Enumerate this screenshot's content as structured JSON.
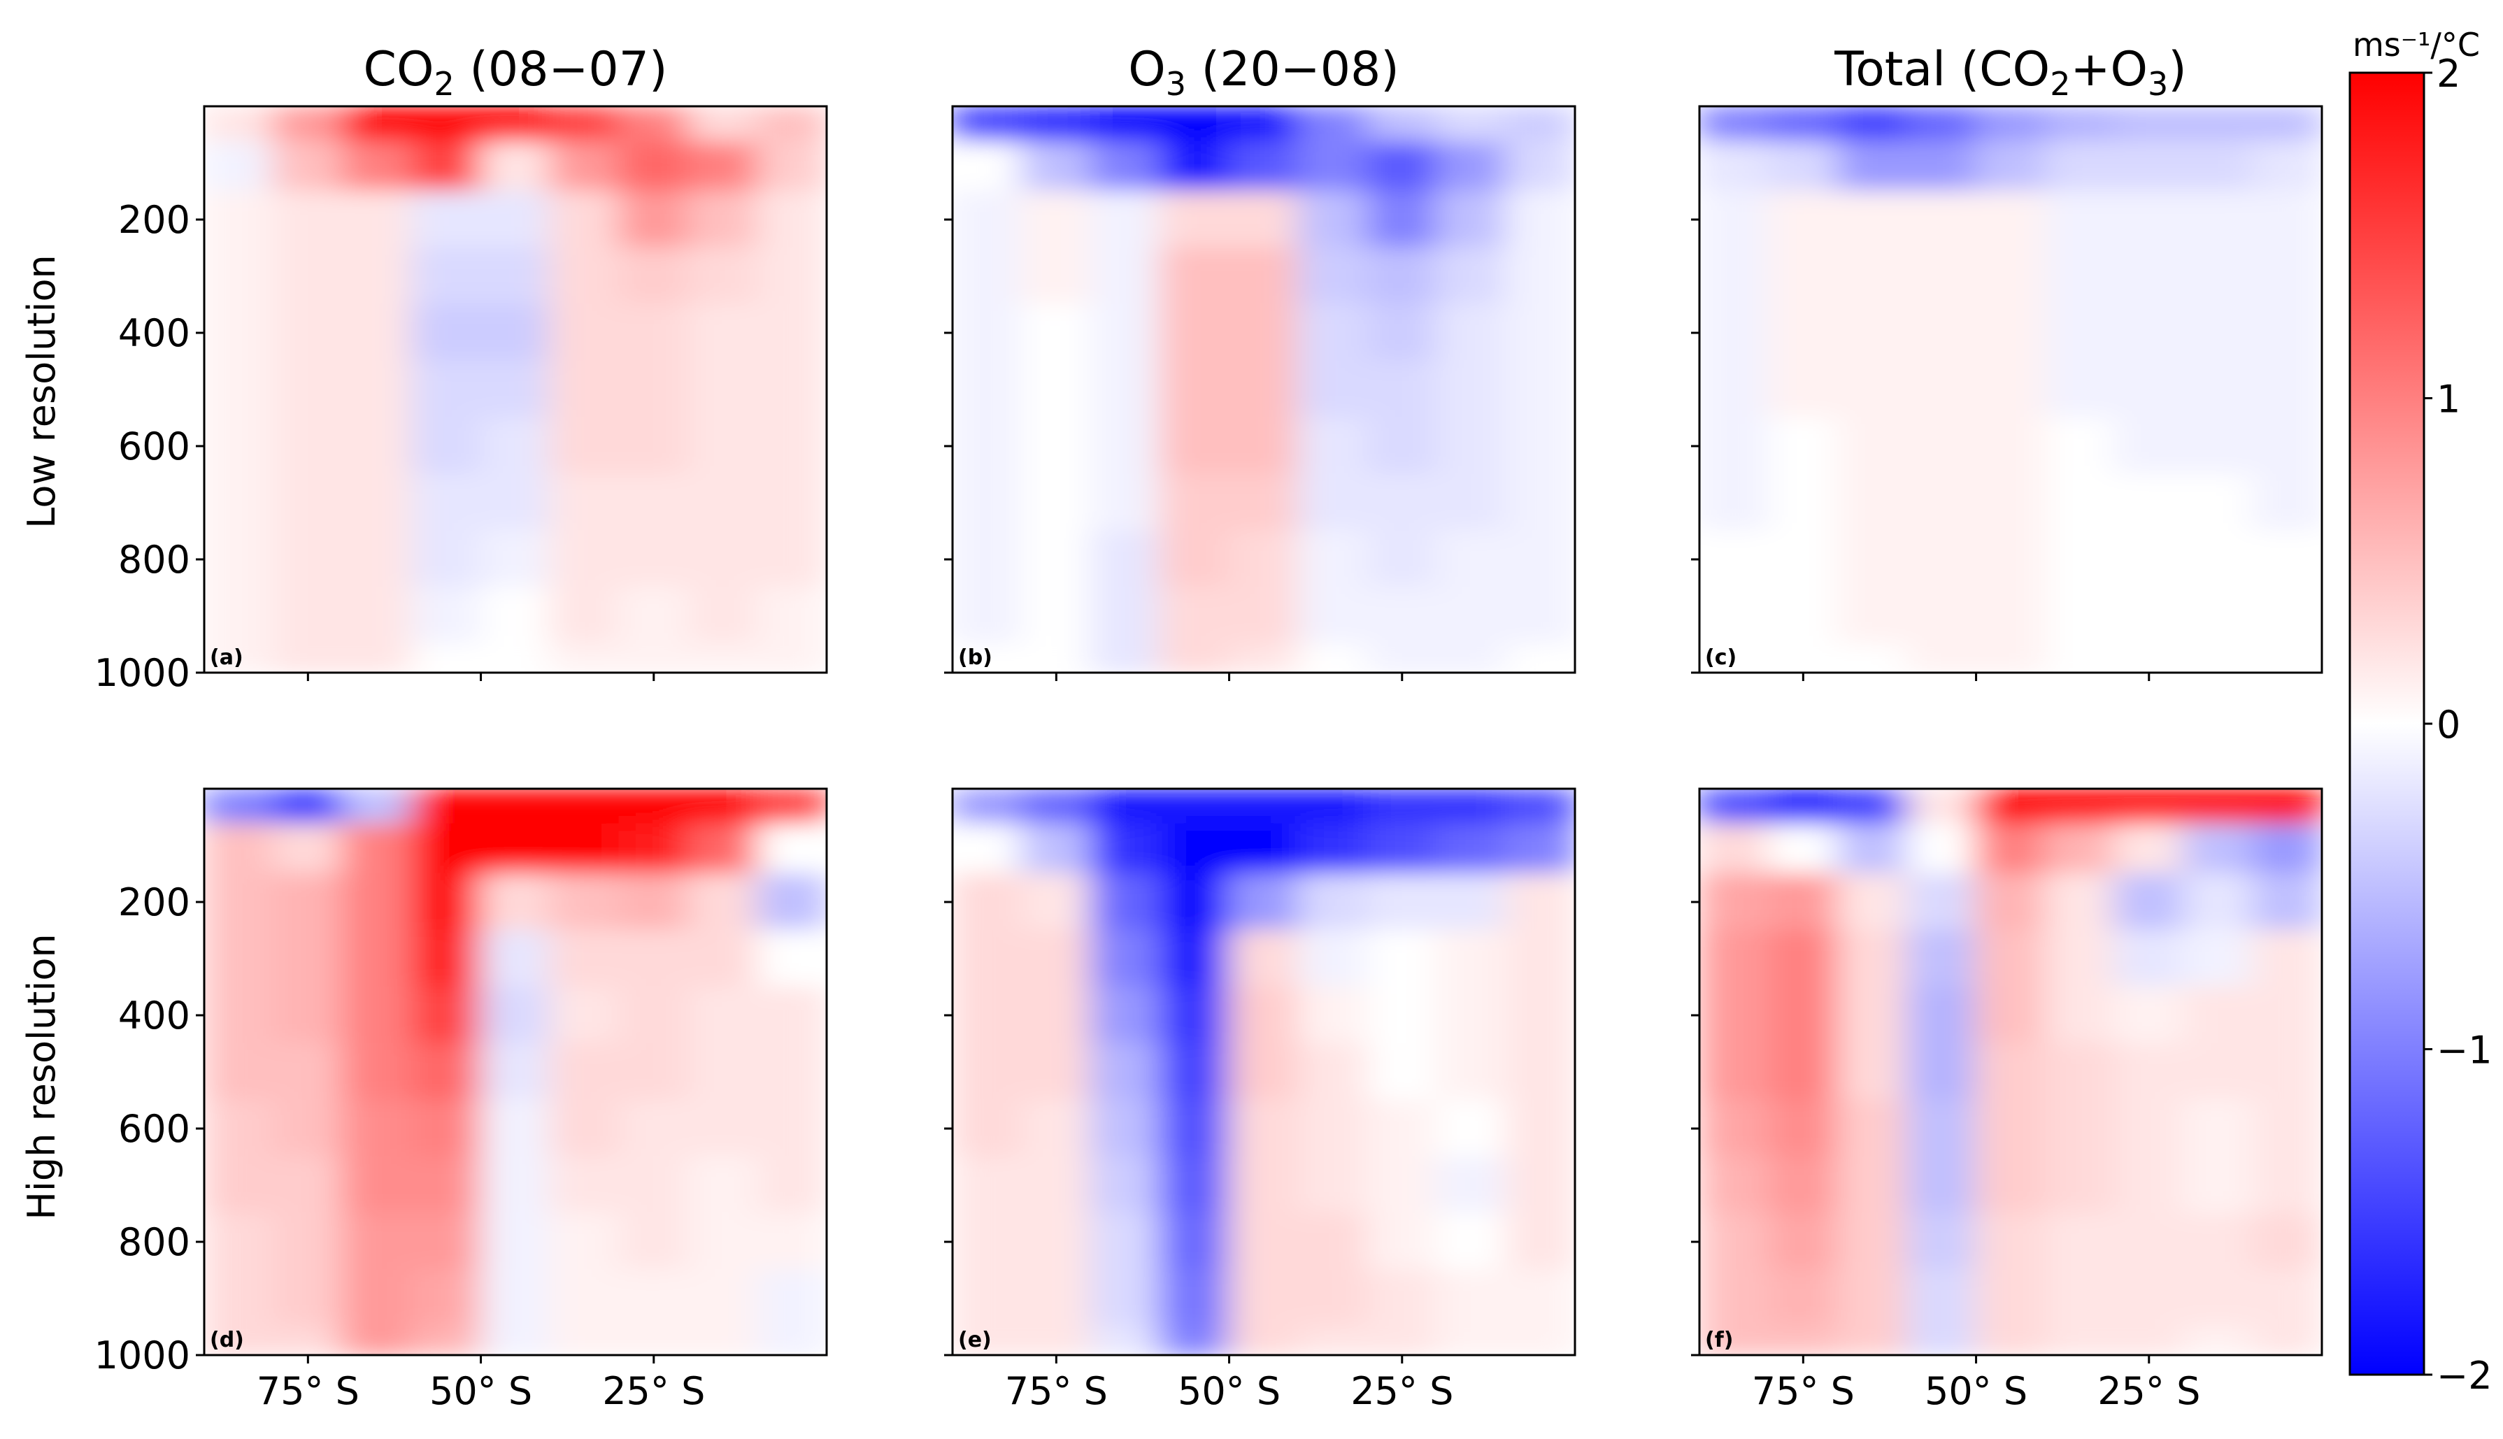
{
  "colorbar": {
    "unit_label": "ms⁻¹/°C",
    "ticks": [
      {
        "value": 2,
        "label": "2"
      },
      {
        "value": 1,
        "label": "1"
      },
      {
        "value": 0,
        "label": "0"
      },
      {
        "value": -1,
        "label": "−1"
      },
      {
        "value": -2,
        "label": "−2"
      }
    ],
    "range": [
      -2,
      2
    ],
    "colors": {
      "low": "#0000ff",
      "mid": "#ffffff",
      "high": "#ff0000"
    }
  },
  "columns": [
    {
      "title_main": "CO",
      "title_sub": "2",
      "title_rest": " (08−07)"
    },
    {
      "title_main": "O",
      "title_sub": "3",
      "title_rest": " (20−08)"
    },
    {
      "title_main": "Total (CO",
      "title_sub": "2",
      "title_mid": "+O",
      "title_sub2": "3",
      "title_rest": ")"
    }
  ],
  "rows": [
    {
      "label": "Low resolution"
    },
    {
      "label": "High resolution"
    }
  ],
  "y_axis": {
    "ticks": [
      {
        "value": 200,
        "label": "200"
      },
      {
        "value": 400,
        "label": "400"
      },
      {
        "value": 600,
        "label": "600"
      },
      {
        "value": 800,
        "label": "800"
      },
      {
        "value": 1000,
        "label": "1000"
      }
    ],
    "range": [
      0,
      1000
    ],
    "inverted": true
  },
  "x_axis": {
    "ticks": [
      {
        "value": -75,
        "label": "75° S"
      },
      {
        "value": -50,
        "label": "50° S"
      },
      {
        "value": -25,
        "label": "25° S"
      }
    ],
    "range": [
      -90,
      0
    ]
  },
  "chart_data": {
    "type": "heatmap",
    "x": [
      -85,
      -75,
      -65,
      -55,
      -45,
      -35,
      -25,
      -15,
      -5
    ],
    "y": [
      25,
      100,
      200,
      300,
      400,
      500,
      600,
      700,
      800,
      900,
      1000
    ],
    "zlim": [
      -2,
      2
    ],
    "panels": [
      {
        "label": "(a)",
        "z": [
          [
            0.2,
            0.8,
            2.0,
            2.0,
            2.0,
            1.5,
            1.0,
            0.3,
            0.5
          ],
          [
            -0.1,
            0.5,
            1.0,
            1.5,
            0.2,
            0.8,
            1.2,
            1.0,
            0.4
          ],
          [
            0.1,
            0.2,
            0.2,
            -0.2,
            -0.2,
            0.3,
            0.8,
            0.5,
            0.2
          ],
          [
            0.1,
            0.2,
            0.2,
            -0.3,
            -0.3,
            0.3,
            0.4,
            0.3,
            0.2
          ],
          [
            0.1,
            0.2,
            0.2,
            -0.4,
            -0.4,
            0.3,
            0.3,
            0.2,
            0.2
          ],
          [
            0.1,
            0.2,
            0.2,
            -0.3,
            -0.3,
            0.3,
            0.3,
            0.2,
            0.2
          ],
          [
            0.1,
            0.2,
            0.2,
            -0.3,
            -0.2,
            0.3,
            0.3,
            0.2,
            0.2
          ],
          [
            0.1,
            0.2,
            0.2,
            -0.2,
            -0.2,
            0.2,
            0.2,
            0.2,
            0.2
          ],
          [
            0.1,
            0.2,
            0.2,
            -0.2,
            -0.1,
            0.2,
            0.2,
            0.2,
            0.2
          ],
          [
            0.1,
            0.2,
            0.2,
            -0.1,
            0.0,
            0.2,
            0.1,
            0.2,
            0.1
          ],
          [
            0.1,
            0.2,
            0.2,
            0.0,
            0.0,
            0.1,
            0.1,
            0.1,
            0.1
          ]
        ]
      },
      {
        "label": "(b)",
        "z": [
          [
            -1.5,
            -1.7,
            -2.0,
            -2.0,
            -1.8,
            -1.0,
            -0.5,
            -0.3,
            -0.4
          ],
          [
            0.0,
            -0.5,
            -1.0,
            -1.8,
            -1.3,
            -1.0,
            -1.3,
            -0.8,
            -0.3
          ],
          [
            -0.1,
            0.1,
            -0.1,
            0.3,
            0.3,
            -0.5,
            -1.0,
            -0.5,
            -0.1
          ],
          [
            -0.1,
            0.1,
            -0.1,
            0.5,
            0.5,
            -0.4,
            -0.5,
            -0.3,
            -0.1
          ],
          [
            -0.1,
            0.0,
            -0.1,
            0.5,
            0.5,
            -0.3,
            -0.4,
            -0.2,
            -0.1
          ],
          [
            -0.1,
            0.0,
            -0.1,
            0.5,
            0.5,
            -0.3,
            -0.3,
            -0.2,
            -0.1
          ],
          [
            -0.1,
            0.0,
            -0.1,
            0.5,
            0.5,
            -0.2,
            -0.3,
            -0.2,
            -0.1
          ],
          [
            -0.1,
            0.0,
            -0.1,
            0.4,
            0.4,
            -0.2,
            -0.2,
            -0.2,
            -0.1
          ],
          [
            -0.1,
            0.0,
            -0.2,
            0.4,
            0.3,
            -0.1,
            -0.2,
            -0.1,
            -0.1
          ],
          [
            -0.1,
            0.0,
            -0.2,
            0.3,
            0.3,
            -0.1,
            -0.1,
            -0.1,
            -0.1
          ],
          [
            0.0,
            0.0,
            -0.2,
            0.3,
            0.2,
            0.0,
            -0.1,
            -0.1,
            0.0
          ]
        ]
      },
      {
        "label": "(c)",
        "z": [
          [
            -1.0,
            -1.2,
            -1.5,
            -1.2,
            -0.8,
            -0.6,
            -0.5,
            -0.5,
            -0.5
          ],
          [
            -0.2,
            -0.3,
            -0.8,
            -0.8,
            -0.5,
            -0.3,
            -0.3,
            -0.3,
            -0.2
          ],
          [
            -0.1,
            0.1,
            0.1,
            0.1,
            0.1,
            -0.1,
            -0.1,
            -0.1,
            -0.1
          ],
          [
            -0.1,
            0.1,
            0.1,
            0.1,
            0.1,
            -0.1,
            -0.1,
            -0.1,
            -0.1
          ],
          [
            -0.1,
            0.1,
            0.1,
            0.1,
            0.1,
            -0.1,
            -0.1,
            -0.1,
            -0.1
          ],
          [
            -0.1,
            0.1,
            0.1,
            0.1,
            0.1,
            -0.1,
            -0.1,
            -0.1,
            -0.1
          ],
          [
            -0.1,
            0.0,
            0.1,
            0.1,
            0.1,
            0.0,
            -0.1,
            -0.1,
            -0.1
          ],
          [
            -0.1,
            0.0,
            0.1,
            0.1,
            0.1,
            0.0,
            0.0,
            0.0,
            -0.1
          ],
          [
            0.0,
            0.0,
            0.1,
            0.1,
            0.1,
            0.0,
            0.0,
            0.0,
            0.0
          ],
          [
            0.0,
            0.0,
            0.1,
            0.1,
            0.1,
            0.0,
            0.0,
            0.0,
            0.0
          ],
          [
            0.0,
            0.0,
            0.0,
            0.1,
            0.1,
            0.0,
            0.0,
            0.0,
            0.0
          ]
        ]
      },
      {
        "label": "(d)",
        "z": [
          [
            -1.0,
            -1.5,
            -0.5,
            2.0,
            2.0,
            2.0,
            2.0,
            2.0,
            1.5
          ],
          [
            0.5,
            0.3,
            1.0,
            2.0,
            2.0,
            2.0,
            1.8,
            1.2,
            0.0
          ],
          [
            0.5,
            0.6,
            1.0,
            2.0,
            0.3,
            0.5,
            0.6,
            0.3,
            -0.5
          ],
          [
            0.5,
            0.6,
            1.0,
            1.8,
            -0.2,
            0.3,
            0.3,
            0.3,
            0.0
          ],
          [
            0.5,
            0.6,
            1.0,
            1.5,
            -0.3,
            0.2,
            0.3,
            0.2,
            0.2
          ],
          [
            0.5,
            0.5,
            1.0,
            1.2,
            -0.2,
            0.3,
            0.3,
            0.2,
            0.2
          ],
          [
            0.4,
            0.5,
            0.9,
            1.0,
            -0.1,
            0.3,
            0.2,
            0.2,
            0.2
          ],
          [
            0.4,
            0.4,
            0.9,
            0.9,
            -0.1,
            0.2,
            0.2,
            0.1,
            0.2
          ],
          [
            0.3,
            0.4,
            0.8,
            0.8,
            -0.1,
            0.1,
            0.2,
            0.1,
            0.1
          ],
          [
            0.3,
            0.4,
            0.8,
            0.7,
            -0.1,
            0.1,
            0.1,
            0.1,
            -0.1
          ],
          [
            0.3,
            0.3,
            0.8,
            0.6,
            -0.1,
            0.1,
            0.1,
            0.1,
            -0.1
          ]
        ]
      },
      {
        "label": "(e)",
        "z": [
          [
            -0.8,
            -1.2,
            -1.8,
            -1.8,
            -1.8,
            -1.8,
            -1.6,
            -1.6,
            -1.4
          ],
          [
            0.0,
            -0.5,
            -1.6,
            -2.0,
            -2.0,
            -1.6,
            -1.4,
            -1.2,
            -1.0
          ],
          [
            0.3,
            0.2,
            -1.2,
            -2.0,
            -0.8,
            -0.3,
            -0.2,
            -0.2,
            0.2
          ],
          [
            0.3,
            0.3,
            -1.0,
            -1.8,
            0.3,
            -0.1,
            0.0,
            0.1,
            0.2
          ],
          [
            0.3,
            0.3,
            -0.8,
            -1.6,
            0.4,
            0.1,
            0.0,
            0.1,
            0.2
          ],
          [
            0.3,
            0.3,
            -0.6,
            -1.5,
            0.4,
            0.2,
            0.0,
            0.1,
            0.2
          ],
          [
            0.3,
            0.2,
            -0.5,
            -1.4,
            0.3,
            0.2,
            0.1,
            0.0,
            0.2
          ],
          [
            0.2,
            0.2,
            -0.4,
            -1.3,
            0.3,
            0.2,
            0.1,
            -0.1,
            0.2
          ],
          [
            0.2,
            0.2,
            -0.3,
            -1.2,
            0.3,
            0.3,
            0.1,
            0.0,
            0.2
          ],
          [
            0.2,
            0.2,
            -0.3,
            -1.1,
            0.3,
            0.3,
            0.2,
            0.1,
            0.1
          ],
          [
            0.2,
            0.2,
            -0.2,
            -1.0,
            0.3,
            0.2,
            0.2,
            0.1,
            0.1
          ]
        ]
      },
      {
        "label": "(f)",
        "z": [
          [
            -1.4,
            -1.8,
            -1.5,
            0.2,
            2.0,
            2.0,
            2.0,
            2.0,
            2.0
          ],
          [
            0.3,
            0.0,
            -0.5,
            0.0,
            1.0,
            0.6,
            0.2,
            -0.5,
            -0.8
          ],
          [
            0.7,
            0.8,
            0.2,
            -0.3,
            0.6,
            0.2,
            -0.5,
            -0.2,
            -0.5
          ],
          [
            0.8,
            1.0,
            0.3,
            -0.5,
            0.5,
            0.2,
            -0.2,
            -0.1,
            0.2
          ],
          [
            0.8,
            1.0,
            0.3,
            -0.6,
            0.5,
            0.2,
            0.1,
            0.2,
            0.2
          ],
          [
            0.8,
            1.0,
            0.3,
            -0.6,
            0.4,
            0.3,
            0.2,
            0.2,
            0.2
          ],
          [
            0.7,
            0.9,
            0.4,
            -0.5,
            0.4,
            0.3,
            0.2,
            0.1,
            0.2
          ],
          [
            0.6,
            0.8,
            0.4,
            -0.5,
            0.4,
            0.3,
            0.2,
            0.1,
            0.2
          ],
          [
            0.5,
            0.7,
            0.4,
            -0.4,
            0.3,
            0.2,
            0.2,
            0.2,
            0.3
          ],
          [
            0.5,
            0.6,
            0.4,
            -0.3,
            0.3,
            0.2,
            0.2,
            0.2,
            0.2
          ],
          [
            0.5,
            0.5,
            0.4,
            -0.3,
            0.3,
            0.2,
            0.2,
            0.1,
            0.2
          ]
        ]
      }
    ]
  }
}
